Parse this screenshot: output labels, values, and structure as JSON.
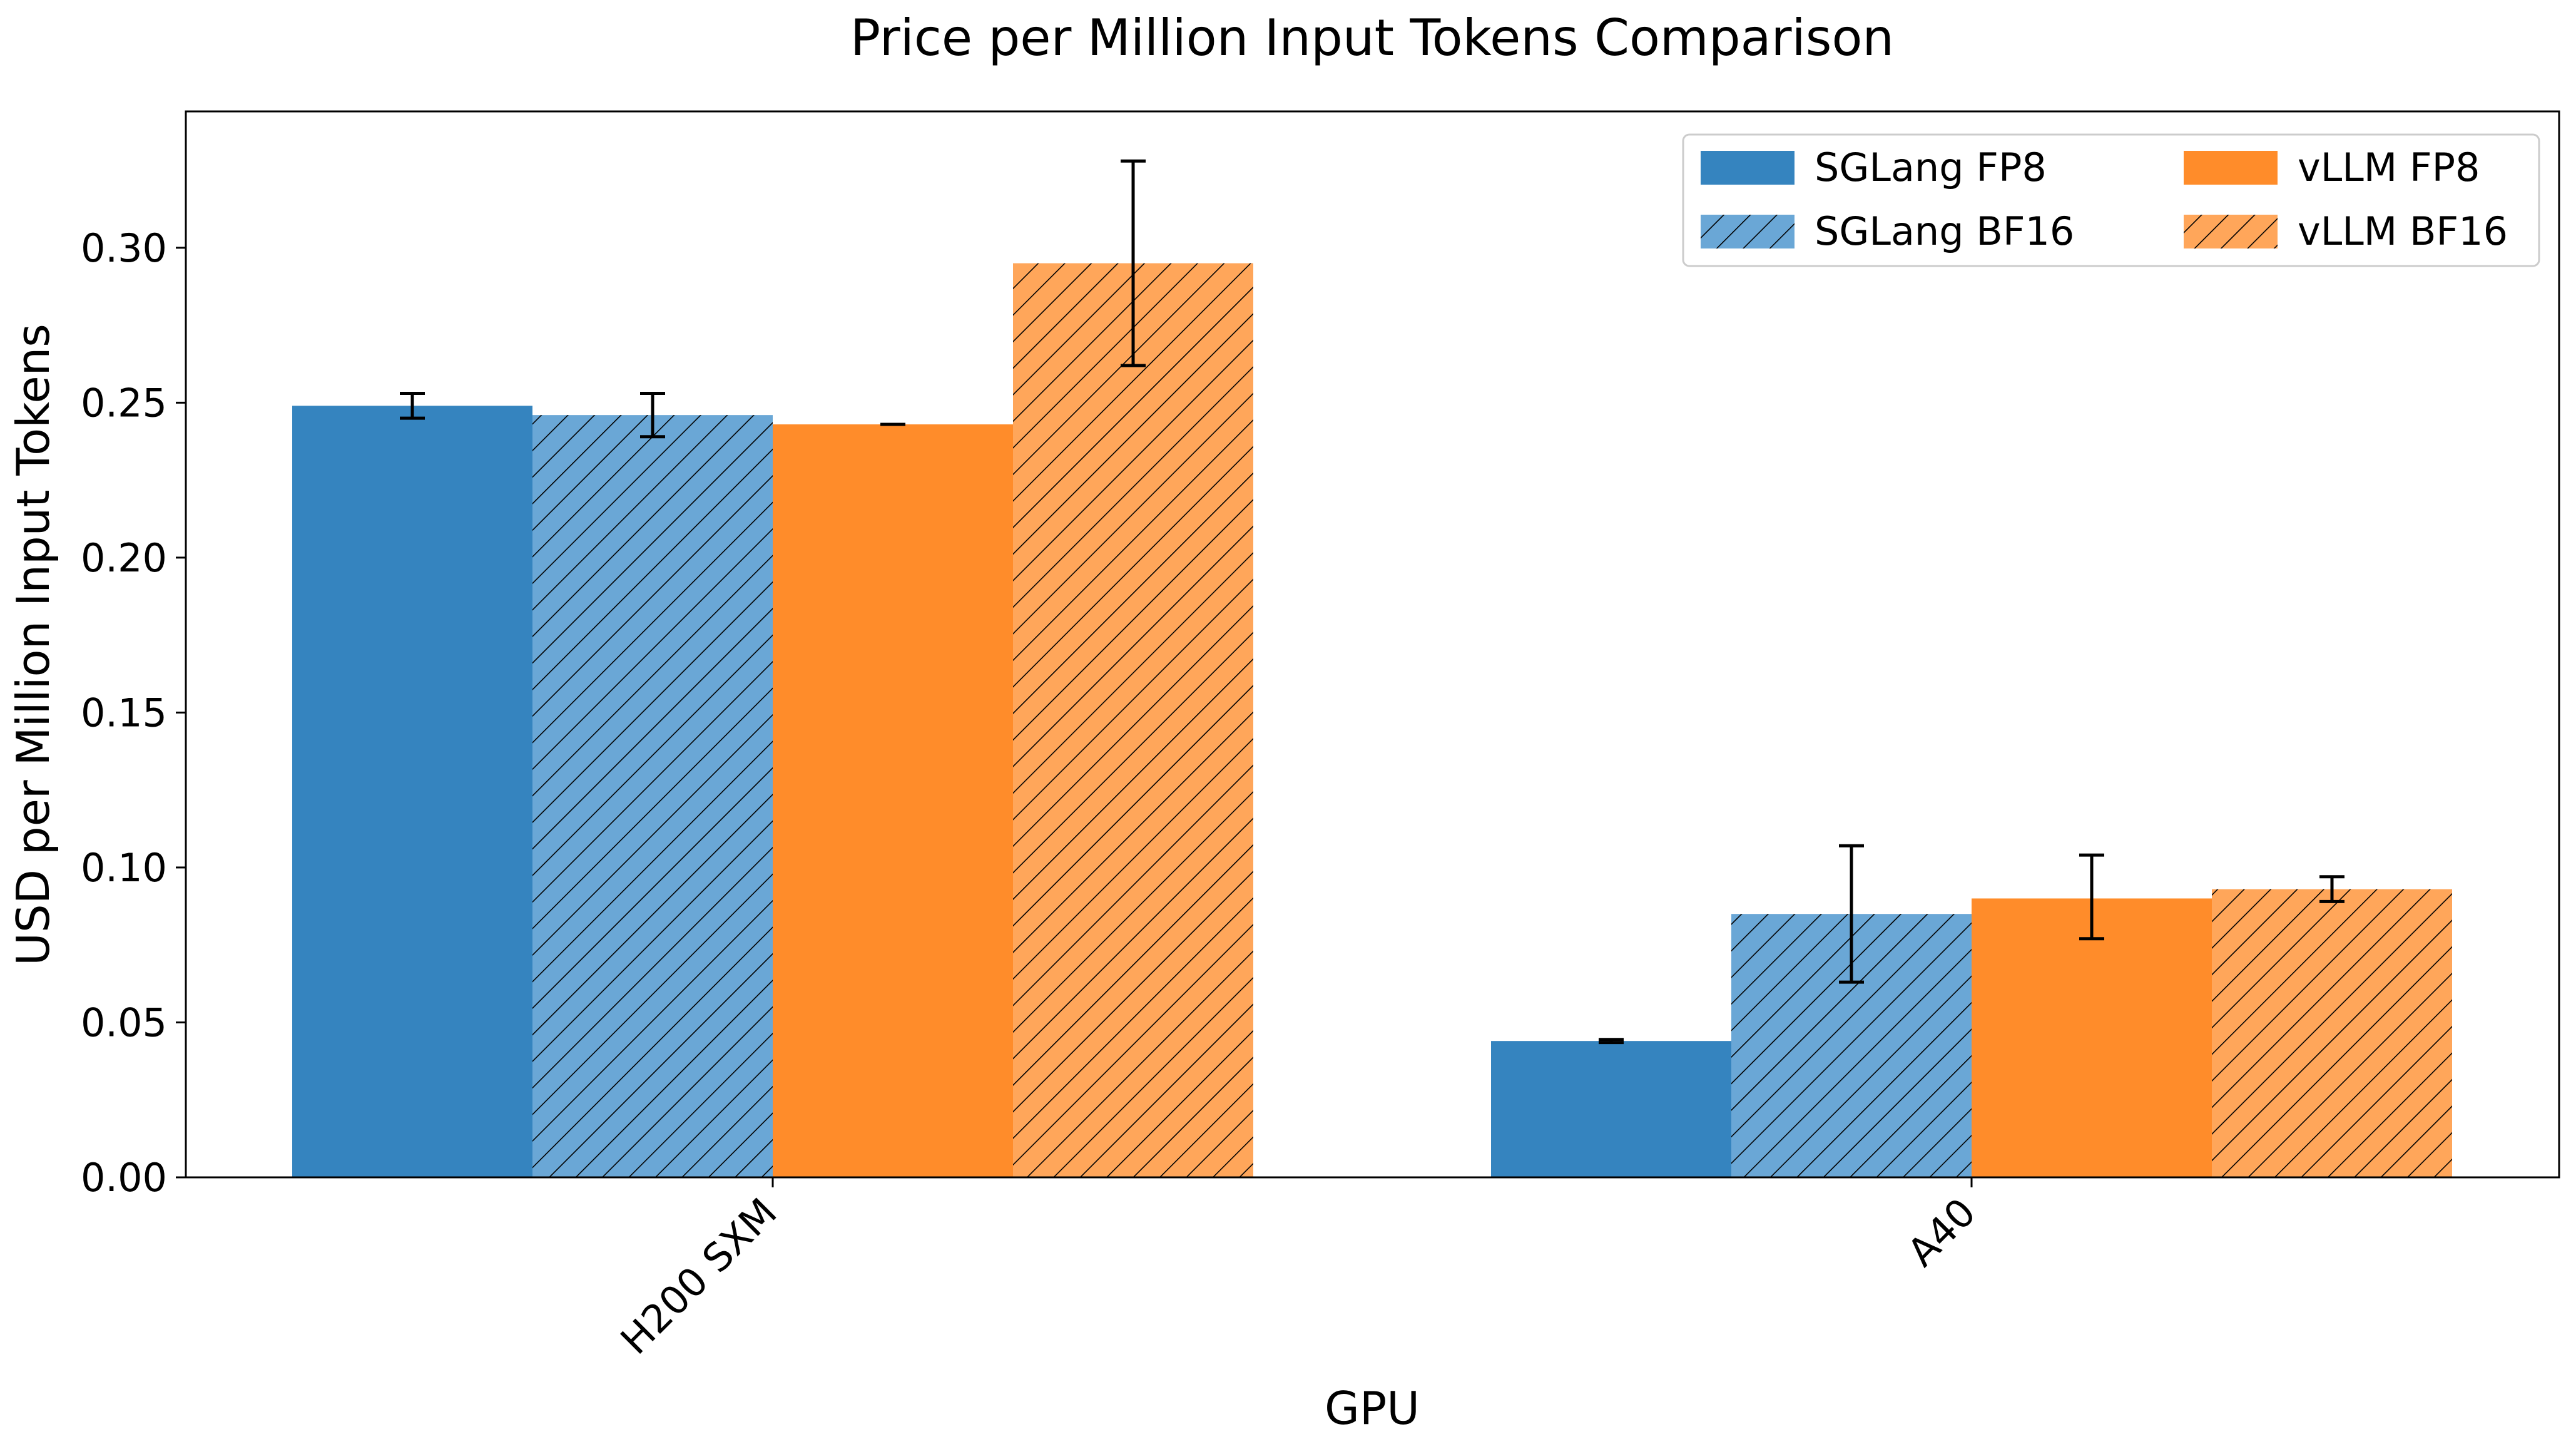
{
  "chart_data": {
    "type": "bar",
    "title": "Price per Million Input Tokens Comparison",
    "xlabel": "GPU",
    "ylabel": "USD per Million Input Tokens",
    "categories": [
      "H200 SXM",
      "A40"
    ],
    "ylim": [
      0,
      0.344
    ],
    "yticks": [
      0.0,
      0.05,
      0.1,
      0.15,
      0.2,
      0.25,
      0.3
    ],
    "ytick_labels": [
      "0.00",
      "0.05",
      "0.10",
      "0.15",
      "0.20",
      "0.25",
      "0.30"
    ],
    "grid": false,
    "legend_position": "top-right",
    "series": [
      {
        "name": "SGLang FP8",
        "color": "#3584bf",
        "hatch": false,
        "values": [
          0.249,
          0.044
        ],
        "error_low": [
          0.245,
          0.0435
        ],
        "error_high": [
          0.253,
          0.0445
        ]
      },
      {
        "name": "SGLang BF16",
        "color": "#6aa7d6",
        "hatch": true,
        "values": [
          0.246,
          0.085
        ],
        "error_low": [
          0.239,
          0.063
        ],
        "error_high": [
          0.253,
          0.107
        ]
      },
      {
        "name": "vLLM FP8",
        "color": "#ff8c2a",
        "hatch": false,
        "values": [
          0.243,
          0.09
        ],
        "error_low": [
          0.243,
          0.077
        ],
        "error_high": [
          0.243,
          0.104
        ]
      },
      {
        "name": "vLLM BF16",
        "color": "#ffa65a",
        "hatch": true,
        "values": [
          0.295,
          0.093
        ],
        "error_low": [
          0.262,
          0.089
        ],
        "error_high": [
          0.328,
          0.097
        ]
      }
    ]
  }
}
